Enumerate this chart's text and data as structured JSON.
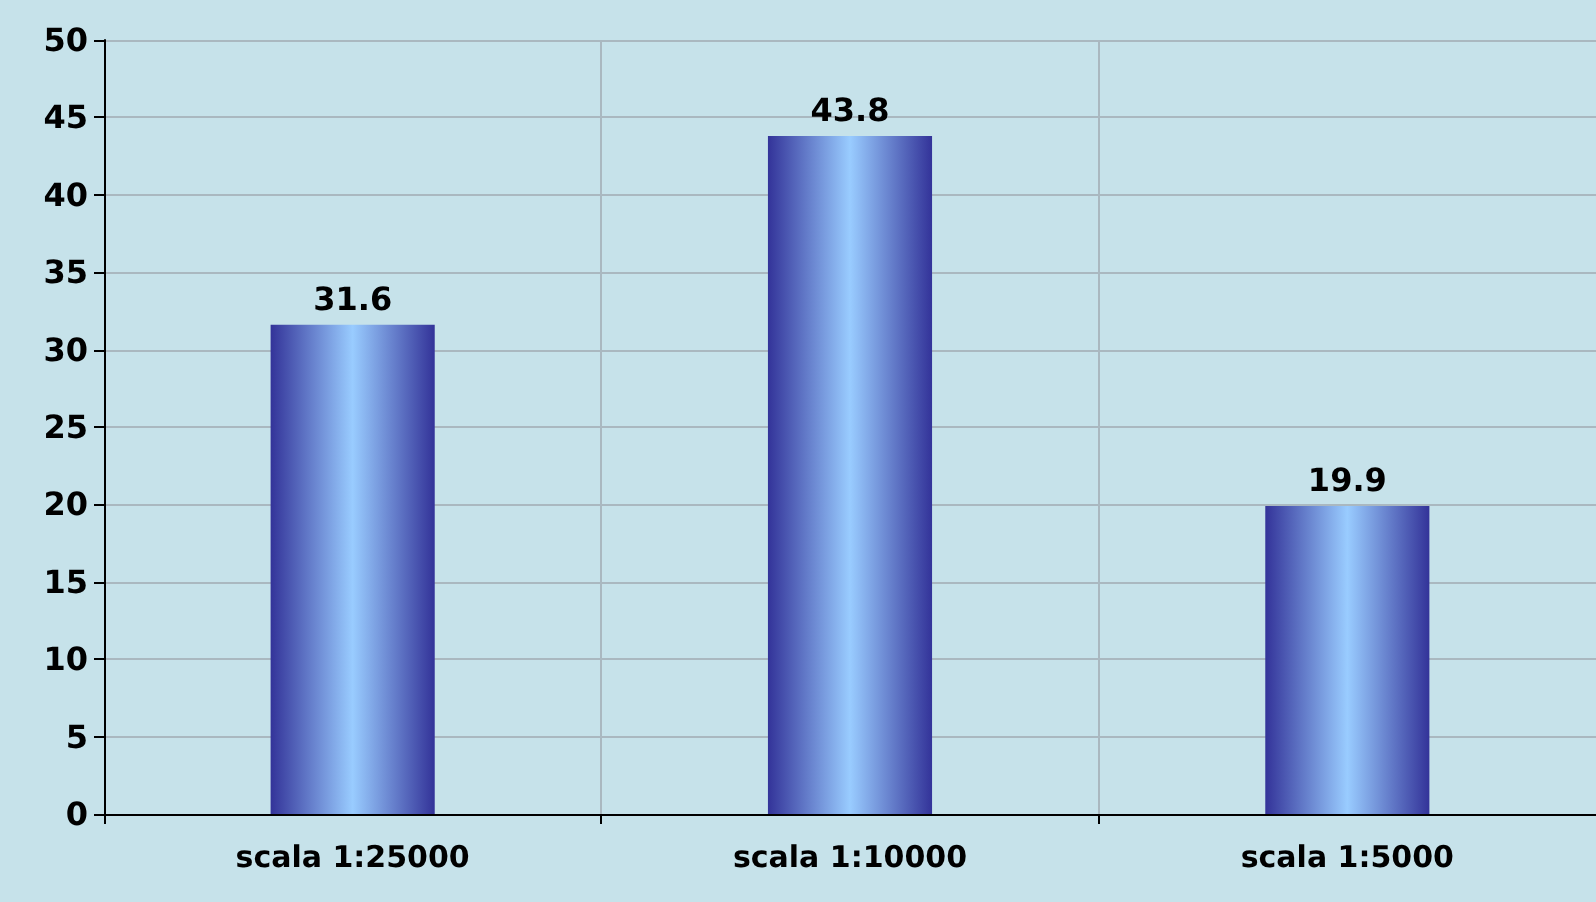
{
  "chart_data": {
    "type": "bar",
    "categories": [
      "scala 1:25000",
      "scala 1:10000",
      "scala 1:5000"
    ],
    "values": [
      31.6,
      43.8,
      19.9
    ],
    "color": "#99ccff",
    "ylim": [
      0,
      50
    ],
    "yticks": [
      0,
      5,
      10,
      15,
      20,
      25,
      30,
      35,
      40,
      45,
      50
    ],
    "grid": true,
    "data_labels": true
  }
}
